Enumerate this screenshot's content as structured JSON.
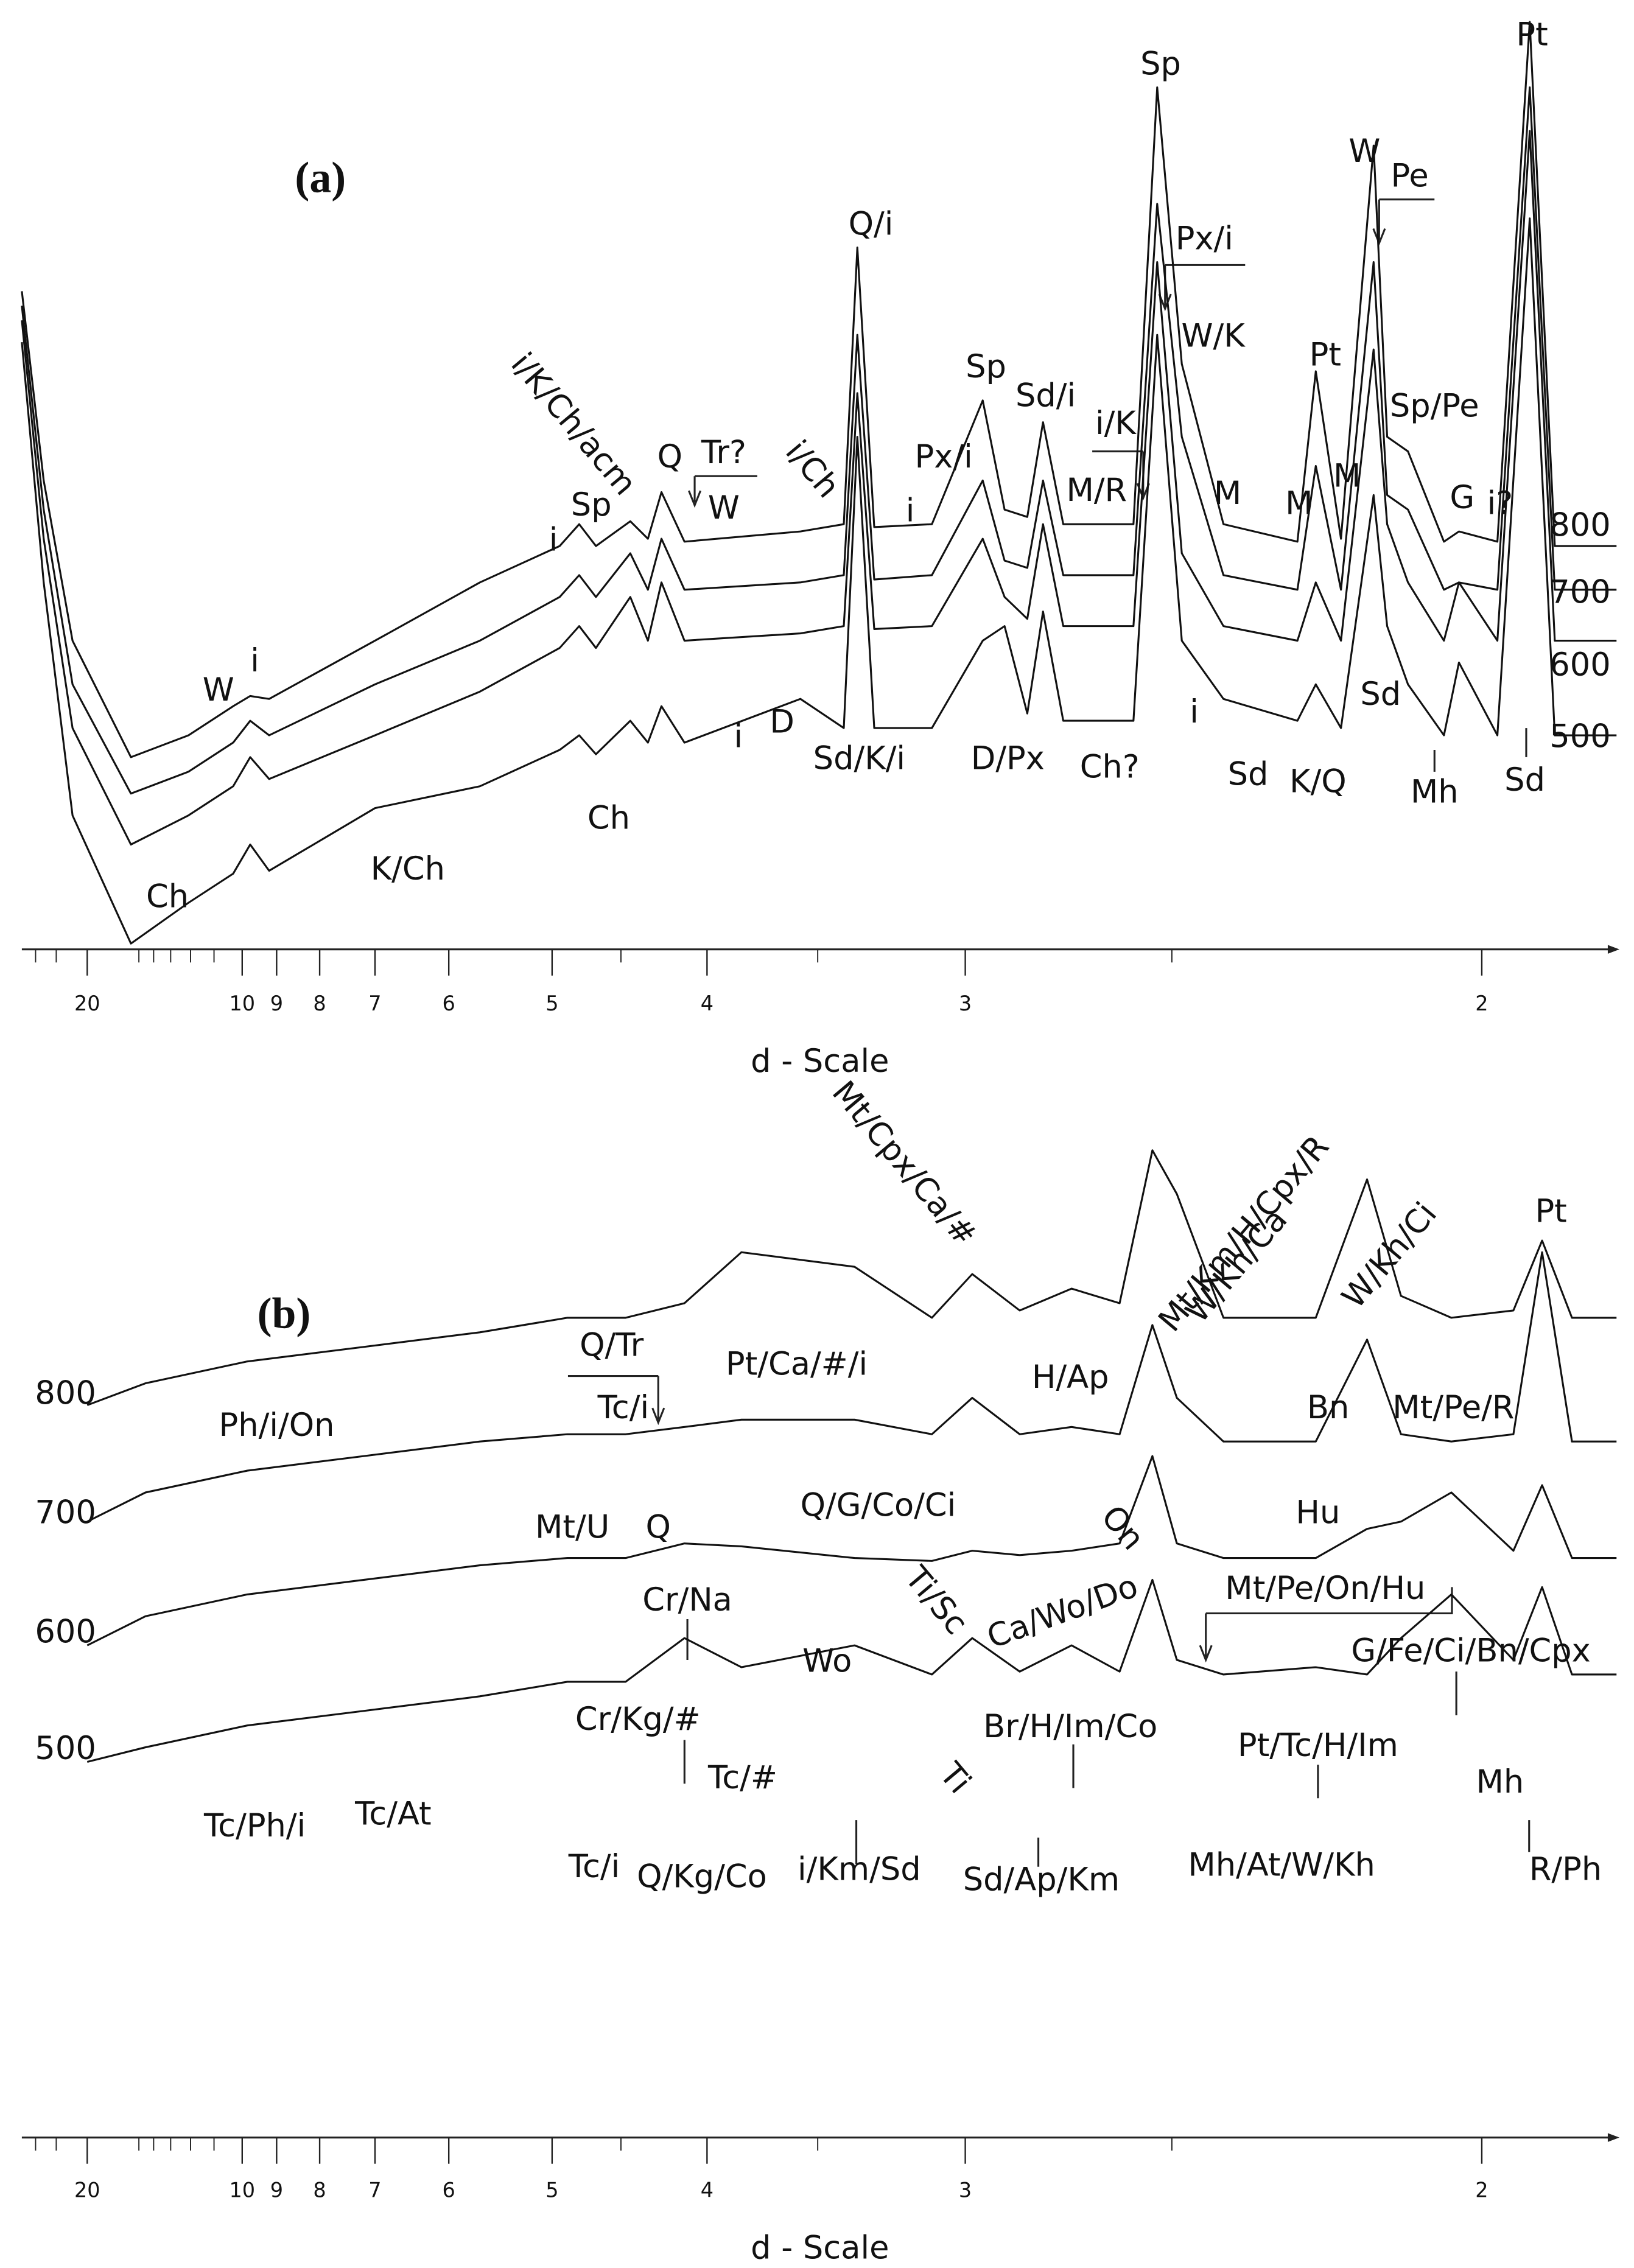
{
  "chart_data": [
    {
      "type": "line",
      "title": "(a)",
      "xlabel": "d - Scale",
      "xscale": "reciprocal",
      "xlim": [
        34.6,
        1.84
      ],
      "xticks": [
        20,
        10,
        9,
        8,
        7,
        6,
        5,
        4,
        3,
        2
      ],
      "xminor": [
        30,
        25,
        15,
        14,
        13,
        12,
        11,
        4.5,
        3.5,
        2.5
      ],
      "ylim": [
        0,
        640
      ],
      "x": [
        34.6,
        27.8,
        22.1,
        15.6,
        12.1,
        10.3,
        9.75,
        9.2,
        7.0,
        5.66,
        4.94,
        4.79,
        4.67,
        4.44,
        4.33,
        4.25,
        4.12,
        3.57,
        3.4,
        3.35,
        3.29,
        3.1,
        2.95,
        2.89,
        2.83,
        2.79,
        2.74,
        2.58,
        2.53,
        2.48,
        2.4,
        2.27,
        2.24,
        2.2,
        2.15,
        2.13,
        2.1,
        2.05,
        2.03,
        1.98,
        1.94,
        1.91,
        1.84
      ],
      "series": [
        {
          "name": "800",
          "color": "#111111",
          "values": [
            452,
            322,
            212,
            132,
            147,
            167,
            174,
            172,
            212,
            252,
            277,
            292,
            277,
            294,
            282,
            314,
            280,
            287,
            292,
            482,
            290,
            292,
            377,
            302,
            297,
            362,
            292,
            292,
            592,
            402,
            292,
            280,
            397,
            282,
            552,
            352,
            342,
            280,
            287,
            280,
            637,
            277,
            277
          ]
        },
        {
          "name": "700",
          "color": "#111111",
          "values": [
            442,
            302,
            182,
            107,
            122,
            142,
            157,
            147,
            182,
            212,
            242,
            257,
            242,
            272,
            247,
            282,
            247,
            252,
            257,
            422,
            254,
            257,
            322,
            267,
            262,
            322,
            257,
            257,
            512,
            352,
            257,
            247,
            332,
            247,
            472,
            312,
            302,
            247,
            252,
            247,
            592,
            247,
            247
          ]
        },
        {
          "name": "600",
          "color": "#111111",
          "values": [
            432,
            282,
            152,
            72,
            92,
            112,
            132,
            117,
            147,
            177,
            207,
            222,
            207,
            242,
            212,
            252,
            212,
            217,
            222,
            382,
            220,
            222,
            282,
            242,
            227,
            292,
            222,
            222,
            472,
            272,
            222,
            212,
            252,
            212,
            412,
            292,
            252,
            212,
            252,
            212,
            562,
            212,
            212
          ]
        },
        {
          "name": "500",
          "color": "#111111",
          "values": [
            417,
            252,
            92,
            4,
            32,
            52,
            72,
            54,
            97,
            112,
            137,
            147,
            134,
            157,
            142,
            167,
            142,
            172,
            152,
            352,
            152,
            152,
            212,
            222,
            162,
            232,
            157,
            157,
            422,
            212,
            172,
            157,
            182,
            152,
            312,
            222,
            182,
            147,
            197,
            147,
            502,
            147,
            147
          ]
        }
      ],
      "annotations": [
        "Sp",
        "Pt",
        "W",
        "Pe",
        "Q/i",
        "Px/i",
        "W/K",
        "Pt",
        "Sp",
        "Sd/i",
        "i/K",
        "Sp/Pe",
        "Px/i",
        "M/R",
        "M",
        "M",
        "M",
        "G",
        "i?",
        "i/K/Ch/acm",
        "Q",
        "Tr?",
        "W",
        "i/Ch",
        "i",
        "i",
        "Sp",
        "W",
        "i",
        "D",
        "i",
        "Sd/K/i",
        "D/Px",
        "Ch?",
        "i",
        "Sd",
        "K/Q",
        "Sd",
        "Mh",
        "Sd",
        "Ch",
        "K/Ch",
        "Ch"
      ]
    },
    {
      "type": "line",
      "title": "(b)",
      "xlabel": "d - Scale",
      "xscale": "reciprocal",
      "xlim": [
        34.6,
        1.84
      ],
      "xticks": [
        20,
        10,
        9,
        8,
        7,
        6,
        5,
        4,
        3,
        2
      ],
      "xminor": [
        30,
        25,
        15,
        14,
        13,
        12,
        11,
        4.5,
        3.5,
        2.5
      ],
      "ylim": [
        0,
        640
      ],
      "x": [
        20.0,
        14.54,
        9.84,
        7.18,
        5.66,
        4.88,
        4.47,
        4.12,
        3.83,
        3.36,
        3.1,
        2.98,
        2.85,
        2.72,
        2.61,
        2.54,
        2.49,
        2.4,
        2.24,
        2.16,
        2.11,
        2.04,
        1.96,
        1.925,
        1.89,
        1.84
      ],
      "series": [
        {
          "name": "800",
          "color": "#111111",
          "values": [
            503,
            518,
            533,
            543,
            553,
            563,
            563,
            573,
            608,
            598,
            563,
            593,
            568,
            583,
            573,
            678,
            648,
            563,
            563,
            658,
            578,
            563,
            568,
            616,
            563,
            563
          ]
        },
        {
          "name": "700",
          "color": "#111111",
          "values": [
            423,
            443,
            458,
            468,
            478,
            483,
            483,
            488,
            493,
            493,
            483,
            508,
            483,
            488,
            483,
            558,
            508,
            478,
            478,
            548,
            483,
            478,
            483,
            608,
            478,
            478
          ]
        },
        {
          "name": "600",
          "color": "#111111",
          "values": [
            338,
            358,
            373,
            383,
            393,
            398,
            398,
            408,
            406,
            398,
            396,
            403,
            400,
            403,
            408,
            468,
            408,
            398,
            398,
            418,
            423,
            443,
            403,
            448,
            398,
            398
          ]
        },
        {
          "name": "500",
          "color": "#111111",
          "values": [
            258,
            268,
            283,
            293,
            303,
            313,
            313,
            343,
            323,
            338,
            318,
            343,
            320,
            338,
            320,
            383,
            328,
            318,
            323,
            318,
            343,
            373,
            328,
            378,
            318,
            318
          ]
        }
      ],
      "annotations": [
        "Pt",
        "Mt/Km/H/Cpx/R",
        "W/Kh/Ca",
        "W/Kh/Ci",
        "Mt/Cpx/Ca/#",
        "Q/Tr",
        "Pt/Ca/#/i",
        "Tc/i",
        "H/Ap",
        "Bn",
        "Mt/Pe/R",
        "Ph/i/On",
        "Mt/U",
        "Q",
        "Q/G/Co/Ci",
        "On",
        "Hu",
        "Cr/Na",
        "Mt/Pe/On/Hu",
        "Ti/Sc",
        "Ca/Wo/Do",
        "Wo",
        "G/Fe/Ci/Bn/Cpx",
        "Cr/Kg/#",
        "Br/H/Im/Co",
        "Pt/Tc/H/Im",
        "Tc/#",
        "Ti",
        "Mh",
        "Tc/Ph/i",
        "Tc/At",
        "Tc/i",
        "Q/Kg/Co",
        "i/Km/Sd",
        "Sd/Ap/Km",
        "Mh/At/W/Kh",
        "R/Ph"
      ]
    }
  ]
}
